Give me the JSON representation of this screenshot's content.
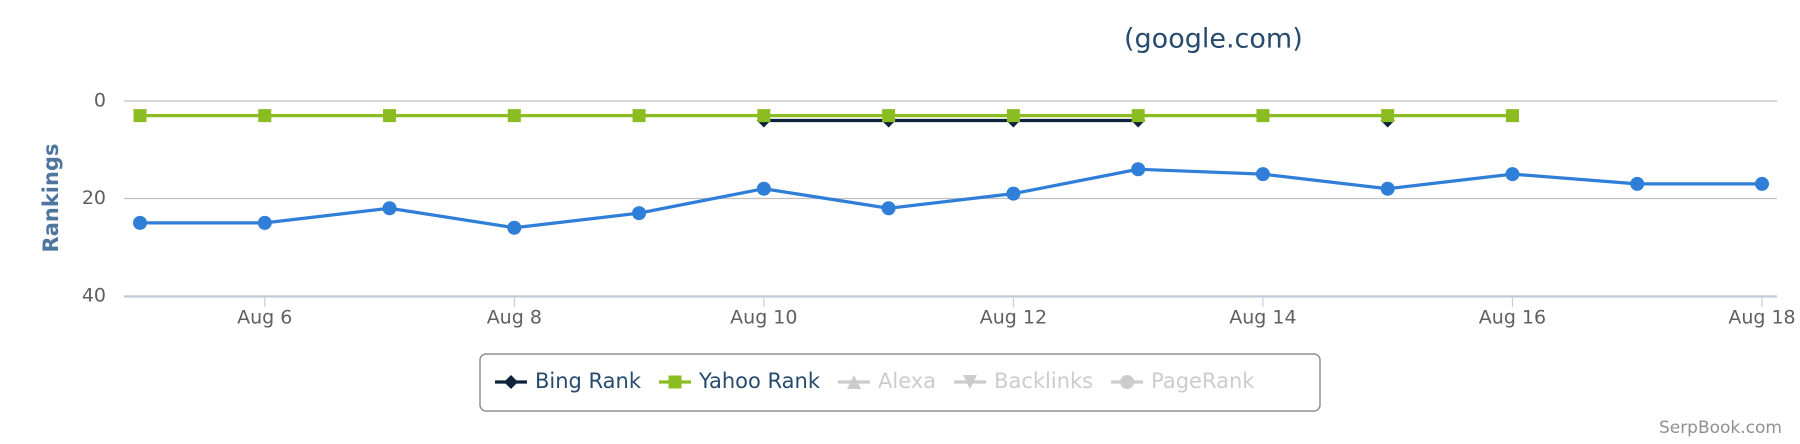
{
  "chart_data": {
    "type": "line",
    "title": "(google.com)",
    "y_label": "Rankings",
    "credit": "SerpBook.com",
    "categories": [
      null,
      "Aug 6",
      null,
      "Aug 8",
      null,
      "Aug 10",
      null,
      "Aug 12",
      null,
      "Aug 14",
      null,
      "Aug 16",
      null,
      "Aug 18"
    ],
    "ylim": [
      0,
      40
    ],
    "yticks": [
      0,
      20,
      40
    ],
    "y_reversed": true,
    "grid": true,
    "series": [
      {
        "color": "#2f7ed8",
        "marker": "circle",
        "values": [
          25,
          25,
          22,
          26,
          23,
          18,
          22,
          19,
          14,
          15,
          18,
          15,
          17,
          17
        ]
      },
      {
        "name": "Bing Rank",
        "color": "#0d233a",
        "marker": "diamond",
        "values": [
          null,
          null,
          null,
          null,
          null,
          4,
          4,
          4,
          4,
          null,
          4,
          null,
          null,
          null
        ]
      },
      {
        "name": "Yahoo Rank",
        "color": "#8bbc21",
        "marker": "square",
        "values": [
          3,
          3,
          3,
          3,
          3,
          3,
          3,
          3,
          3,
          3,
          3,
          3,
          null,
          null
        ]
      },
      {
        "name": "Alexa",
        "color": "#cccccc",
        "marker": "triangle",
        "visible": false
      },
      {
        "name": "Backlinks",
        "color": "#cccccc",
        "marker": "triangle-down",
        "visible": false
      },
      {
        "name": "PageRank",
        "color": "#cccccc",
        "marker": "circle",
        "visible": false
      }
    ]
  }
}
